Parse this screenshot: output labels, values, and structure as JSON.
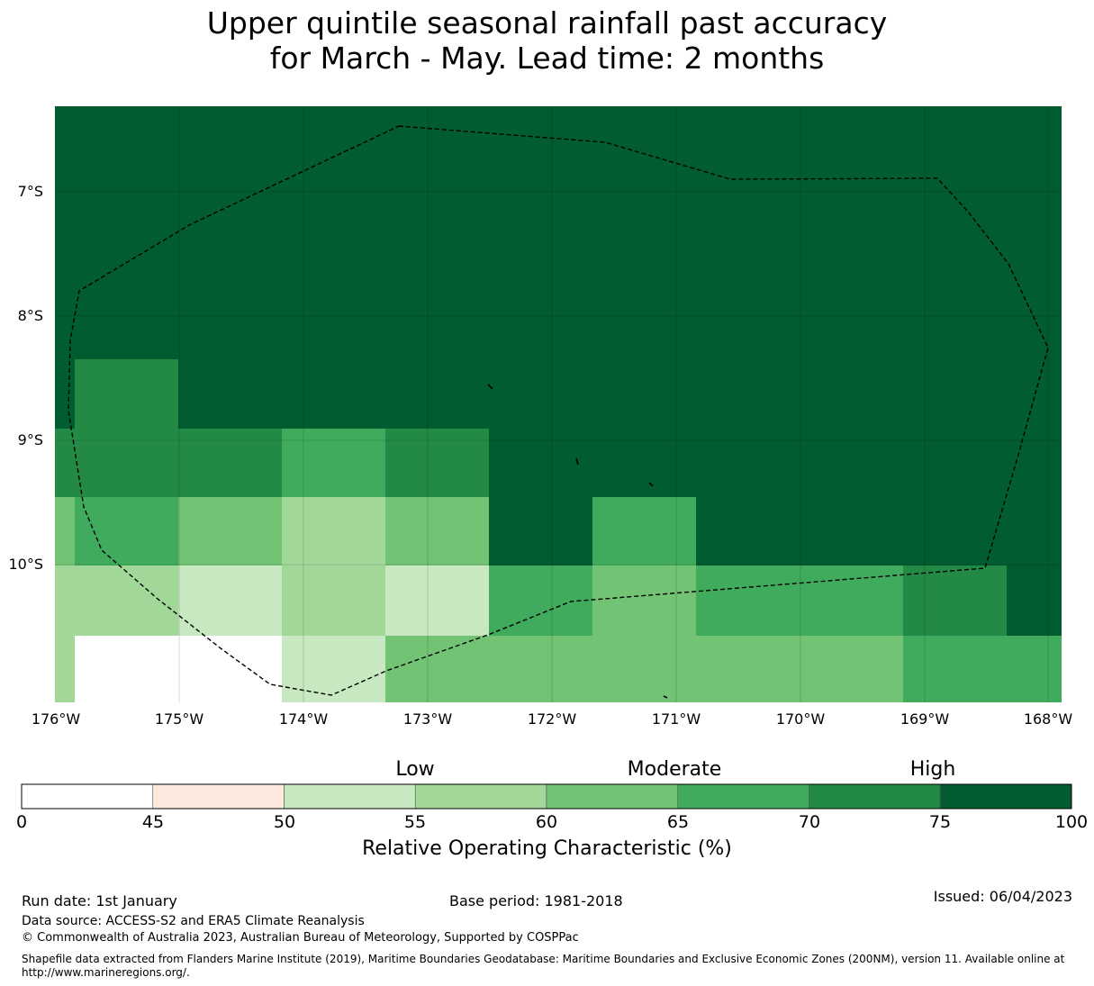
{
  "title": {
    "line1": "Upper quintile seasonal rainfall past accuracy",
    "line2": "for March - May. Lead time: 2 months"
  },
  "map": {
    "lat_labels": [
      "7°S",
      "8°S",
      "9°S",
      "10°S"
    ],
    "lon_labels": [
      "176°W",
      "175°W",
      "174°W",
      "173°W",
      "172°W",
      "171°W",
      "170°W",
      "169°W",
      "168°W"
    ],
    "colors": {
      "c0_45": "#ffffff",
      "c45_50": "#fee9df",
      "c50_55": "#c7e8c1",
      "c55_60": "#a1d898",
      "c60_65": "#72c373",
      "c65_70": "#41ab5d",
      "c70_75": "#228a44",
      "c75_100": "#015c2f",
      "land_mask": "#ffffff",
      "boundary": "#000000"
    }
  },
  "colorbar": {
    "title": "Relative Operating Characteristic (%)",
    "category_labels": [
      "Low",
      "Moderate",
      "High"
    ],
    "tick_labels": [
      "0",
      "45",
      "50",
      "55",
      "60",
      "65",
      "70",
      "75",
      "100"
    ],
    "bins": [
      {
        "from": 0,
        "to": 45,
        "color": "#ffffff"
      },
      {
        "from": 45,
        "to": 50,
        "color": "#fee9df"
      },
      {
        "from": 50,
        "to": 55,
        "color": "#c7e8c1"
      },
      {
        "from": 55,
        "to": 60,
        "color": "#a1d898"
      },
      {
        "from": 60,
        "to": 65,
        "color": "#72c373"
      },
      {
        "from": 65,
        "to": 70,
        "color": "#41ab5d"
      },
      {
        "from": 70,
        "to": 75,
        "color": "#228a44"
      },
      {
        "from": 75,
        "to": 100,
        "color": "#015c2f"
      }
    ]
  },
  "footer": {
    "run_date": "Run date: 1st January",
    "base_period": "Base period: 1981-2018",
    "issued": "Issued: 06/04/2023",
    "data_source": "Data source: ACCESS-S2 and ERA5 Climate Reanalysis",
    "copyright": "© Commonwealth of Australia 2023, Australian Bureau of Meteorology, Supported by COSPPac",
    "shapefile": "Shapefile data extracted from Flanders Marine Institute (2019), Maritime Boundaries Geodatabase: Maritime Boundaries and Exclusive Economic Zones (200NM), version 11. Available online at http://www.marineregions.org/."
  }
}
